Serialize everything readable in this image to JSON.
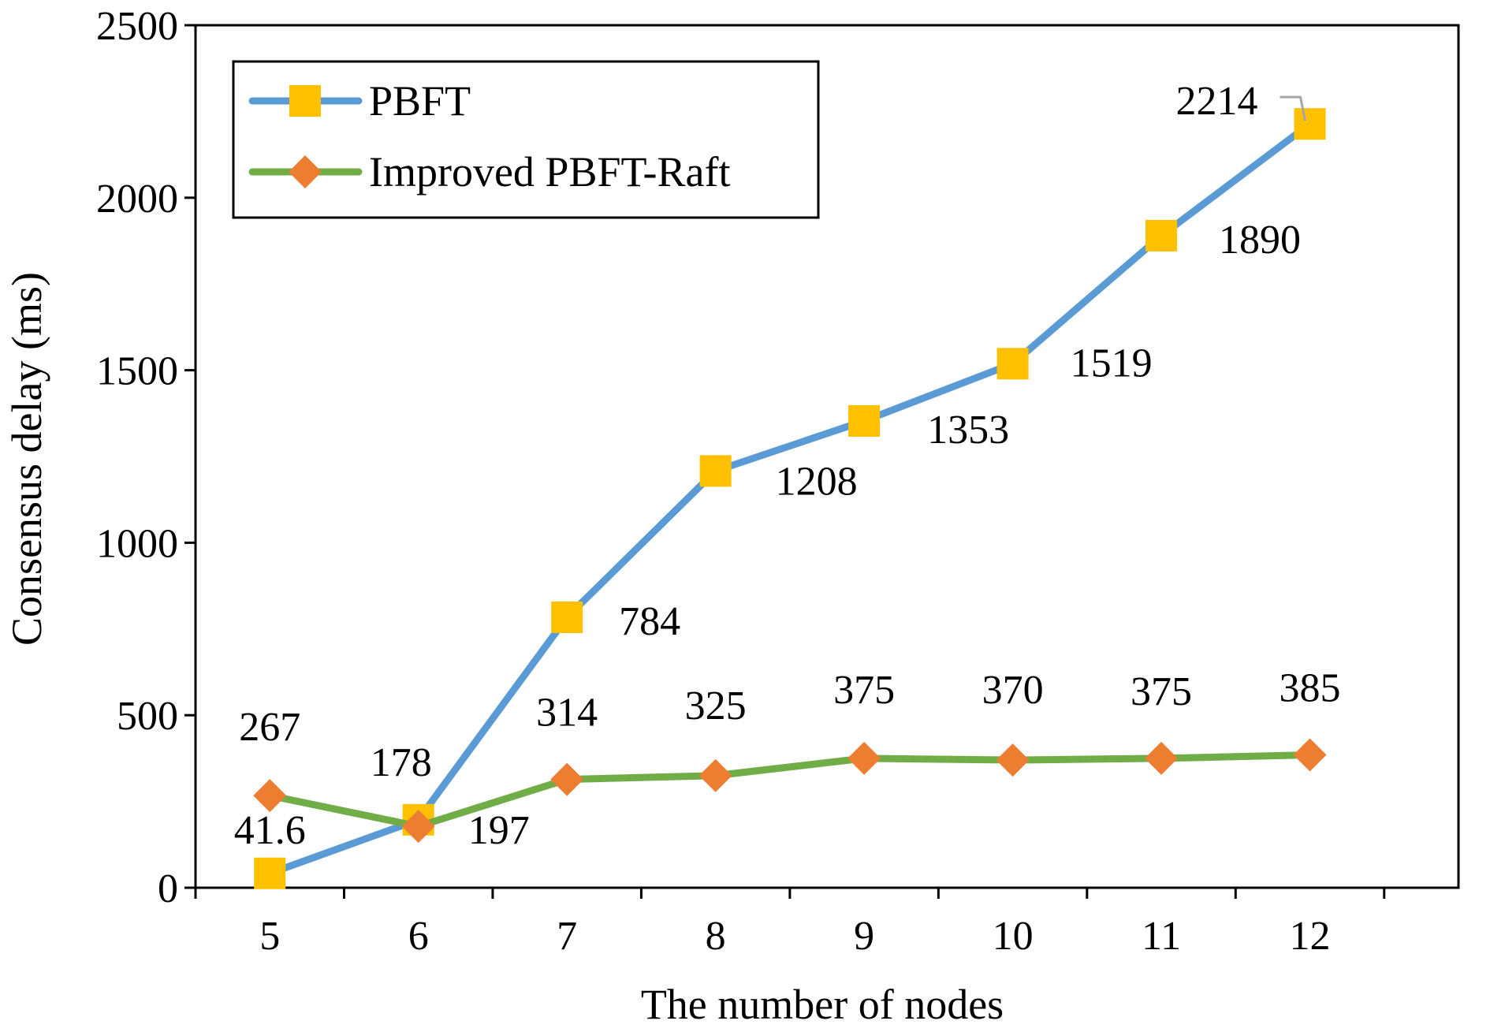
{
  "chart_data": {
    "type": "line",
    "xlabel": "The number of nodes",
    "ylabel": "Consensus delay (ms)",
    "x": [
      5,
      6,
      7,
      8,
      9,
      10,
      11,
      12
    ],
    "x_ticks": [
      "5",
      "6",
      "7",
      "8",
      "9",
      "10",
      "11",
      "12"
    ],
    "ylim": [
      0,
      2500
    ],
    "y_ticks": [
      "0",
      "500",
      "1000",
      "1500",
      "2000",
      "2500"
    ],
    "y_tick_values": [
      0,
      500,
      1000,
      1500,
      2000,
      2500
    ],
    "grid": false,
    "legend_position": "top-left",
    "series": [
      {
        "name": "PBFT",
        "values": [
          41.6,
          197,
          784,
          1208,
          1353,
          1519,
          1890,
          2214
        ],
        "labels": [
          "41.6",
          "197",
          "784",
          "1208",
          "1353",
          "1519",
          "1890",
          "2214"
        ],
        "line_color": "#5B9BD5",
        "marker": "square",
        "marker_color": "#FFC000"
      },
      {
        "name": "Improved PBFT-Raft",
        "values": [
          267,
          178,
          314,
          325,
          375,
          370,
          375,
          385
        ],
        "labels": [
          "267",
          "178",
          "314",
          "325",
          "375",
          "370",
          "375",
          "385"
        ],
        "line_color": "#70AD47",
        "marker": "diamond",
        "marker_color": "#ED7D31"
      }
    ]
  }
}
